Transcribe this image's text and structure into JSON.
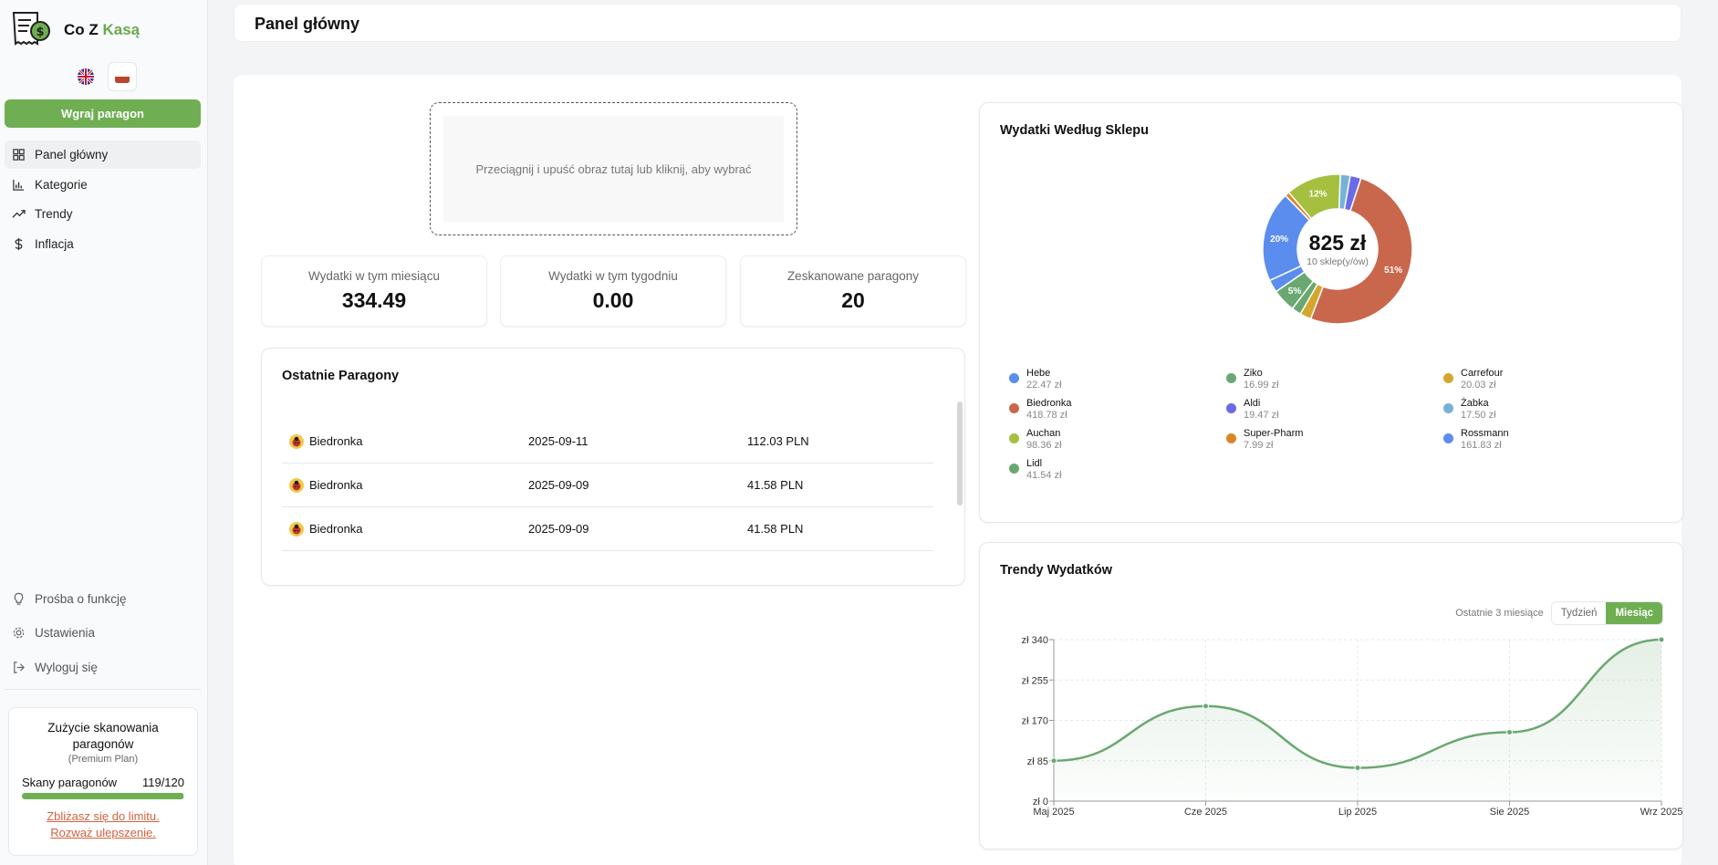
{
  "app": {
    "name_main": "Co Z ",
    "name_accent": "Kasą",
    "accent_color": "#6fae52"
  },
  "sidebar": {
    "upload_label": "Wgraj paragon",
    "items": [
      {
        "label": "Panel główny",
        "icon": "dashboard-icon",
        "active": true
      },
      {
        "label": "Kategorie",
        "icon": "bar-chart-icon"
      },
      {
        "label": "Trendy",
        "icon": "trending-up-icon"
      },
      {
        "label": "Inflacja",
        "icon": "dollar-icon"
      }
    ],
    "bottom_items": [
      {
        "label": "Prośba o funkcję",
        "icon": "lightbulb-icon"
      },
      {
        "label": "Ustawienia",
        "icon": "gear-icon"
      },
      {
        "label": "Wyloguj się",
        "icon": "logout-icon"
      }
    ],
    "usage": {
      "title": "Zużycie skanowania paragonów",
      "plan": "(Premium Plan)",
      "label": "Skany paragonów",
      "count": "119/120",
      "fraction": 0.9917,
      "warning_line1": "Zbliżasz się do limitu.",
      "warning_line2": "Rozważ ulepszenie."
    }
  },
  "header": {
    "title": "Panel główny"
  },
  "dropzone": {
    "text": "Przeciągnij i upuść obraz tutaj lub kliknij, aby wybrać"
  },
  "stats": [
    {
      "label": "Wydatki w tym miesiącu",
      "value": "334.49"
    },
    {
      "label": "Wydatki w tym tygodniu",
      "value": "0.00"
    },
    {
      "label": "Zeskanowane paragony",
      "value": "20"
    }
  ],
  "receipts": {
    "title": "Ostatnie Paragony",
    "rows": [
      {
        "store": "Biedronka",
        "date": "2025-09-11",
        "amount": "112.03 PLN"
      },
      {
        "store": "Biedronka",
        "date": "2025-09-09",
        "amount": "41.58 PLN"
      },
      {
        "store": "Biedronka",
        "date": "2025-09-09",
        "amount": "41.58 PLN"
      }
    ]
  },
  "stores_chart": {
    "title": "Wydatki Według Sklepu",
    "total": "825 zł",
    "subtitle": "10 sklep(y/ów)",
    "legend": [
      {
        "name": "Hebe",
        "value": "22.47 zł",
        "color": "#5b8dee"
      },
      {
        "name": "Ziko",
        "value": "16.99 zł",
        "color": "#6aa871"
      },
      {
        "name": "Carrefour",
        "value": "20.03 zł",
        "color": "#d4a72c"
      },
      {
        "name": "Biedronka",
        "value": "418.78 zł",
        "color": "#c9674d"
      },
      {
        "name": "Aldi",
        "value": "19.47 zł",
        "color": "#6b6be6"
      },
      {
        "name": "Żabka",
        "value": "17.50 zł",
        "color": "#76b2d8"
      },
      {
        "name": "Auchan",
        "value": "98.36 zł",
        "color": "#a5bf3f"
      },
      {
        "name": "Super-Pharm",
        "value": "7.99 zł",
        "color": "#d9852b"
      },
      {
        "name": "Rossmann",
        "value": "161.83 zł",
        "color": "#5b8dee"
      },
      {
        "name": "Lidl",
        "value": "41.54 zł",
        "color": "#6aa871"
      }
    ]
  },
  "chart_data": [
    {
      "type": "pie",
      "title": "Wydatki Według Sklepu",
      "categories": [
        "Biedronka",
        "Carrefour",
        "Ziko",
        "Lidl",
        "Hebe",
        "Rossmann",
        "Super-Pharm",
        "Auchan",
        "Żabka",
        "Aldi"
      ],
      "values": [
        418.78,
        20.03,
        16.99,
        41.54,
        22.47,
        161.83,
        7.99,
        98.36,
        17.5,
        19.47
      ],
      "colors": [
        "#c9674d",
        "#d4a72c",
        "#6aa871",
        "#6aa871",
        "#5b8dee",
        "#5b8dee",
        "#d9852b",
        "#a5bf3f",
        "#76b2d8",
        "#6b6be6"
      ],
      "labels": {
        "Biedronka": "51%",
        "Lidl": "5%",
        "Rossmann": "20%",
        "Auchan": "12%"
      }
    },
    {
      "type": "area",
      "title": "Trendy Wydatków",
      "x": [
        "Maj 2025",
        "Cze 2025",
        "Lip 2025",
        "Sie 2025",
        "Wrz 2025"
      ],
      "values": [
        85,
        200,
        70,
        145,
        340
      ],
      "yticks": [
        "zł 0",
        "zł 85",
        "zł 170",
        "zł 255",
        "zł 340"
      ],
      "ylim": [
        0,
        340
      ],
      "color": "#6aa871"
    }
  ],
  "trends": {
    "title": "Trendy Wydatków",
    "range": "Ostatnie 3 miesiące",
    "btn_week": "Tydzień",
    "btn_month": "Miesiąc"
  }
}
